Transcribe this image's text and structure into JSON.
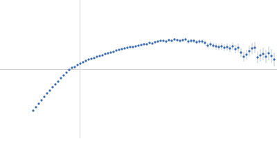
{
  "chart_data": {
    "type": "scatter",
    "color": "#3a6cb8",
    "error_color": "#a9b9d3",
    "xlim": [
      -115,
      285
    ],
    "ylim": [
      -100,
      100
    ],
    "x": [
      -67,
      -63,
      -59,
      -55,
      -51,
      -47,
      -43,
      -39,
      -35,
      -31,
      -27,
      -23,
      -19,
      -15,
      -11,
      -7,
      -3,
      1,
      5,
      9,
      13,
      17,
      21,
      25,
      29,
      33,
      37,
      41,
      45,
      49,
      53,
      57,
      61,
      65,
      69,
      73,
      77,
      81,
      85,
      89,
      93,
      97,
      101,
      105,
      109,
      113,
      117,
      121,
      125,
      129,
      133,
      137,
      141,
      145,
      149,
      153,
      157,
      161,
      165,
      169,
      173,
      177,
      181,
      185,
      189,
      193,
      197,
      201,
      205,
      209,
      213,
      217,
      221,
      225,
      229,
      233,
      237,
      241,
      245,
      249,
      253,
      257,
      261,
      265,
      269,
      273,
      277,
      281
    ],
    "values": [
      -60,
      -55,
      -50,
      -45,
      -40,
      -35,
      -31,
      -26,
      -22,
      -18,
      -13,
      -9,
      -5,
      -1,
      2,
      3,
      6,
      8,
      10,
      12,
      14,
      15,
      16,
      18,
      19,
      20,
      22,
      23,
      24,
      25,
      27,
      28,
      29,
      30,
      31,
      32,
      32,
      33,
      34,
      35,
      36,
      36,
      38,
      37,
      39,
      40,
      41,
      41,
      40,
      42,
      41,
      43,
      42,
      41,
      42,
      43,
      40,
      41,
      41,
      39,
      40,
      40,
      38,
      34,
      36,
      34,
      33,
      32,
      33,
      31,
      32,
      30,
      33,
      29,
      31,
      24,
      18,
      21,
      26,
      30,
      31,
      17,
      20,
      22,
      18,
      23,
      19,
      14
    ],
    "errors": [
      0.5,
      0.5,
      0.5,
      0.5,
      0.5,
      0.5,
      0.5,
      0.5,
      0.5,
      0.5,
      0.5,
      0.5,
      0.5,
      0.5,
      0.5,
      0.5,
      0.5,
      0.5,
      0.5,
      0.5,
      0.5,
      0.5,
      0.5,
      0.5,
      0.5,
      0.5,
      0.5,
      0.5,
      0.5,
      0.5,
      0.5,
      1,
      1,
      1,
      1,
      1,
      1,
      1,
      1,
      1,
      1,
      1,
      1,
      1.5,
      1.5,
      1.5,
      1.5,
      1.5,
      2,
      2,
      2,
      2,
      2,
      2.5,
      2.5,
      2.5,
      3,
      3,
      3,
      3,
      3.5,
      3.5,
      3.5,
      4,
      4,
      4,
      4.5,
      4.5,
      5,
      5,
      5,
      5.5,
      5.5,
      6,
      6,
      6.5,
      7,
      7,
      7.5,
      8,
      8,
      8.5,
      9,
      9,
      9.5,
      10,
      10,
      10
    ]
  }
}
